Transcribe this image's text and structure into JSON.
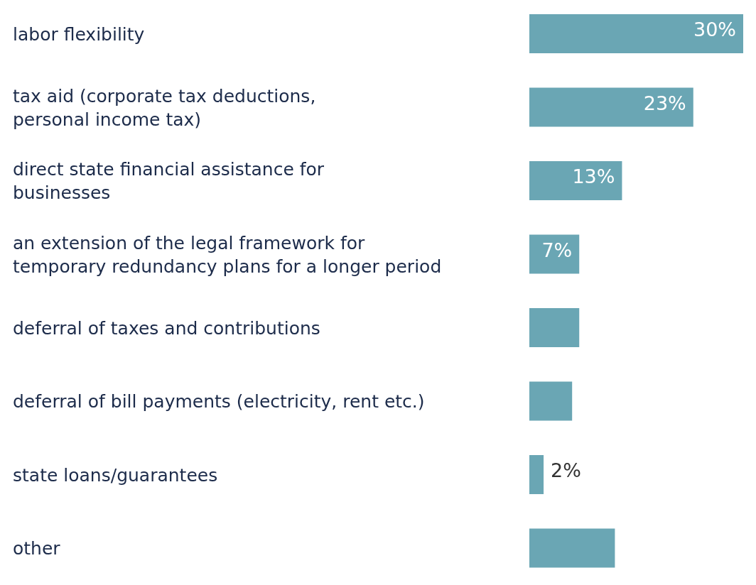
{
  "chart_data": {
    "type": "bar",
    "orientation": "horizontal",
    "categories": [
      "labor flexibility",
      "tax aid (corporate tax deductions,\npersonal income tax)",
      "direct state financial assistance for\nbusinesses",
      "an extension of the legal framework for\ntemporary redundancy plans for a longer period",
      "deferral of taxes and contributions",
      "deferral of bill payments (electricity, rent etc.)",
      "state loans/guarantees",
      "other"
    ],
    "values": [
      30,
      23,
      13,
      7,
      7,
      6,
      2,
      12
    ],
    "value_labels": [
      "30%",
      "23%",
      "13%",
      "7%",
      null,
      null,
      "2%",
      null
    ],
    "color": "#6aa6b4"
  }
}
